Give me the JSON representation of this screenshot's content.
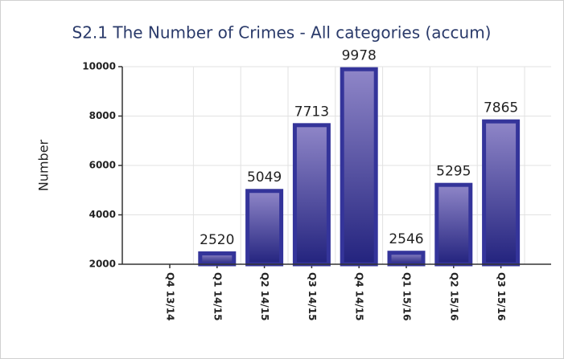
{
  "chart_data": {
    "type": "bar",
    "title": "S2.1 The Number of Crimes - All categories (accum)",
    "y_label": "Number",
    "categories": [
      "Q4 13/14",
      "Q1 14/15",
      "Q2 14/15",
      "Q3 14/15",
      "Q4 14/15",
      "Q1 15/16",
      "Q2 15/16",
      "Q3 15/16"
    ],
    "values": [
      null,
      2520,
      5049,
      7713,
      9978,
      2546,
      5295,
      7865
    ],
    "color": "#34349a",
    "ylim": [
      2000,
      10000
    ],
    "yticks": [
      2000,
      4000,
      6000,
      8000,
      10000
    ],
    "grid": true
  }
}
